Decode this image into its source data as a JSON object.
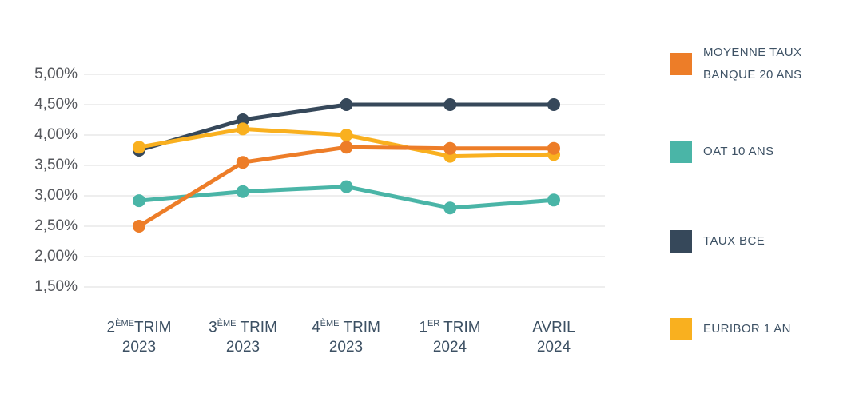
{
  "chart_data": {
    "type": "line",
    "title": "",
    "categories": [
      "2ème Trim 2023",
      "3ème Trim 2023",
      "4ème Trim 2023",
      "1er Trim 2024",
      "Avril 2024"
    ],
    "x_labels": [
      {
        "prefix": "2",
        "sup": "ÈME",
        "suffix": "TRIM",
        "line2": "2023"
      },
      {
        "prefix": "3",
        "sup": "ÈME",
        "suffix": " TRIM",
        "line2": "2023"
      },
      {
        "prefix": "4",
        "sup": "ÈME",
        "suffix": " TRIM",
        "line2": "2023"
      },
      {
        "prefix": "1",
        "sup": "ER",
        "suffix": " TRIM",
        "line2": "2024"
      },
      {
        "prefix": "AVRIL",
        "sup": "",
        "suffix": "",
        "line2": "2024"
      }
    ],
    "series": [
      {
        "name": "MOYENNE TAUX BANQUE 20 ANS",
        "color": "#ED7D28",
        "values": [
          2.5,
          3.55,
          3.8,
          3.78,
          3.78
        ]
      },
      {
        "name": "OAT 10 ANS",
        "color": "#4AB5A7",
        "values": [
          2.92,
          3.07,
          3.15,
          2.8,
          2.93
        ]
      },
      {
        "name": "TAUX BCE",
        "color": "#36485A",
        "values": [
          3.75,
          4.25,
          4.5,
          4.5,
          4.5
        ]
      },
      {
        "name": "EURIBOR 1 AN",
        "color": "#F9B01F",
        "values": [
          3.8,
          4.1,
          4.0,
          3.65,
          3.68
        ]
      }
    ],
    "ylim": [
      1.5,
      5.0
    ],
    "y_ticks": [
      5.0,
      4.5,
      4.0,
      3.5,
      3.0,
      2.5,
      2.0,
      1.5
    ],
    "y_tick_labels": [
      "5,00%",
      "4,50%",
      "4,00%",
      "3,50%",
      "3,00%",
      "2,50%",
      "2,00%",
      "1,50%"
    ],
    "grid": true,
    "gridline_color": "#DCDCDC",
    "legend_position": "right"
  },
  "legend": {
    "items": [
      {
        "label_lines": [
          "MOYENNE TAUX",
          "BANQUE 20 ANS"
        ],
        "color": "#ED7D28"
      },
      {
        "label_lines": [
          "OAT 10 ANS"
        ],
        "color": "#4AB5A7"
      },
      {
        "label_lines": [
          "TAUX BCE"
        ],
        "color": "#36485A"
      },
      {
        "label_lines": [
          "EURIBOR 1 AN"
        ],
        "color": "#F9B01F"
      }
    ]
  }
}
